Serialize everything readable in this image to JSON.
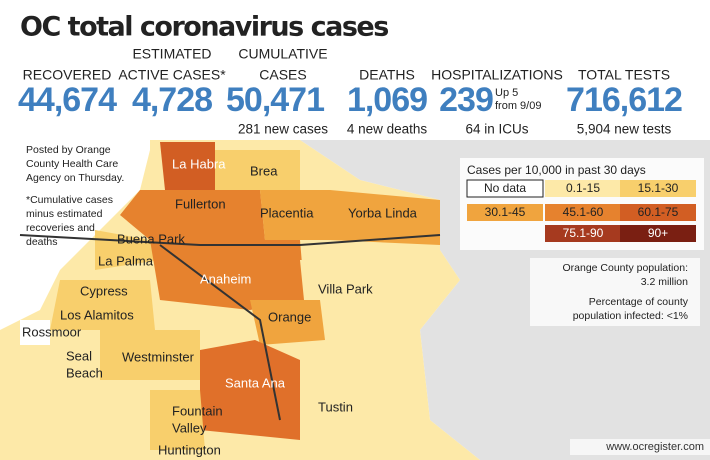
{
  "title": "OC total coronavirus cases",
  "stats": [
    {
      "label": [
        "RECOVERED"
      ],
      "value": "44,674"
    },
    {
      "label": [
        "ESTIMATED",
        "ACTIVE CASES*"
      ],
      "value": "4,728"
    },
    {
      "label": [
        "CUMULATIVE",
        "CASES"
      ],
      "value": "50,471",
      "note": "281 new cases"
    },
    {
      "label": [
        "DEATHS"
      ],
      "value": "1,069",
      "note": "4 new deaths"
    },
    {
      "label": [
        "HOSPITALIZATIONS"
      ],
      "value": "239",
      "aside": [
        "Up 5",
        "from 9/09"
      ],
      "note": "64 in ICUs"
    },
    {
      "label": [
        "TOTAL TESTS"
      ],
      "value": "716,612",
      "note": "5,904 new tests"
    }
  ],
  "notes": [
    [
      "Posted by Orange",
      "County Health Care",
      "Agency on Thursday."
    ],
    [
      "*Cumulative cases",
      "minus estimated",
      "recoveries and",
      "deaths"
    ]
  ],
  "legend": {
    "title": "Cases per 10,000 in past 30 days",
    "items": [
      {
        "label": "No data",
        "color": "#ffffff"
      },
      {
        "label": "0.1-15",
        "color": "#fde9a8"
      },
      {
        "label": "15.1-30",
        "color": "#f8cf6c"
      },
      {
        "label": "30.1-45",
        "color": "#f0a43e"
      },
      {
        "label": "45.1-60",
        "color": "#e6822e"
      },
      {
        "label": "60.1-75",
        "color": "#d25e23"
      },
      {
        "label": "75.1-90",
        "color": "#a63a1f"
      },
      {
        "label": "90+",
        "color": "#7a1f12"
      }
    ]
  },
  "population": [
    "Orange County population:",
    "3.2 million"
  ],
  "infected": [
    "Percentage of county",
    "population infected: <1%"
  ],
  "cities": [
    {
      "lines": [
        "La Habra"
      ],
      "inverse": true
    },
    {
      "lines": [
        "Brea"
      ]
    },
    {
      "lines": [
        "Fullerton"
      ]
    },
    {
      "lines": [
        "Placentia"
      ]
    },
    {
      "lines": [
        "Yorba Linda"
      ]
    },
    {
      "lines": [
        "Buena Park"
      ]
    },
    {
      "lines": [
        "La Palma"
      ]
    },
    {
      "lines": [
        "Anaheim"
      ],
      "inverse": true
    },
    {
      "lines": [
        "Villa Park"
      ]
    },
    {
      "lines": [
        "Cypress"
      ]
    },
    {
      "lines": [
        "Los Alamitos"
      ]
    },
    {
      "lines": [
        "Orange"
      ]
    },
    {
      "lines": [
        "Rossmoor"
      ]
    },
    {
      "lines": [
        "Seal",
        "Beach"
      ]
    },
    {
      "lines": [
        "Westminster"
      ]
    },
    {
      "lines": [
        "Santa Ana"
      ],
      "inverse": true
    },
    {
      "lines": [
        "Tustin"
      ]
    },
    {
      "lines": [
        "Fountain",
        "Valley"
      ]
    },
    {
      "lines": [
        "Huntington"
      ]
    }
  ],
  "credit": "www.ocregister.com"
}
